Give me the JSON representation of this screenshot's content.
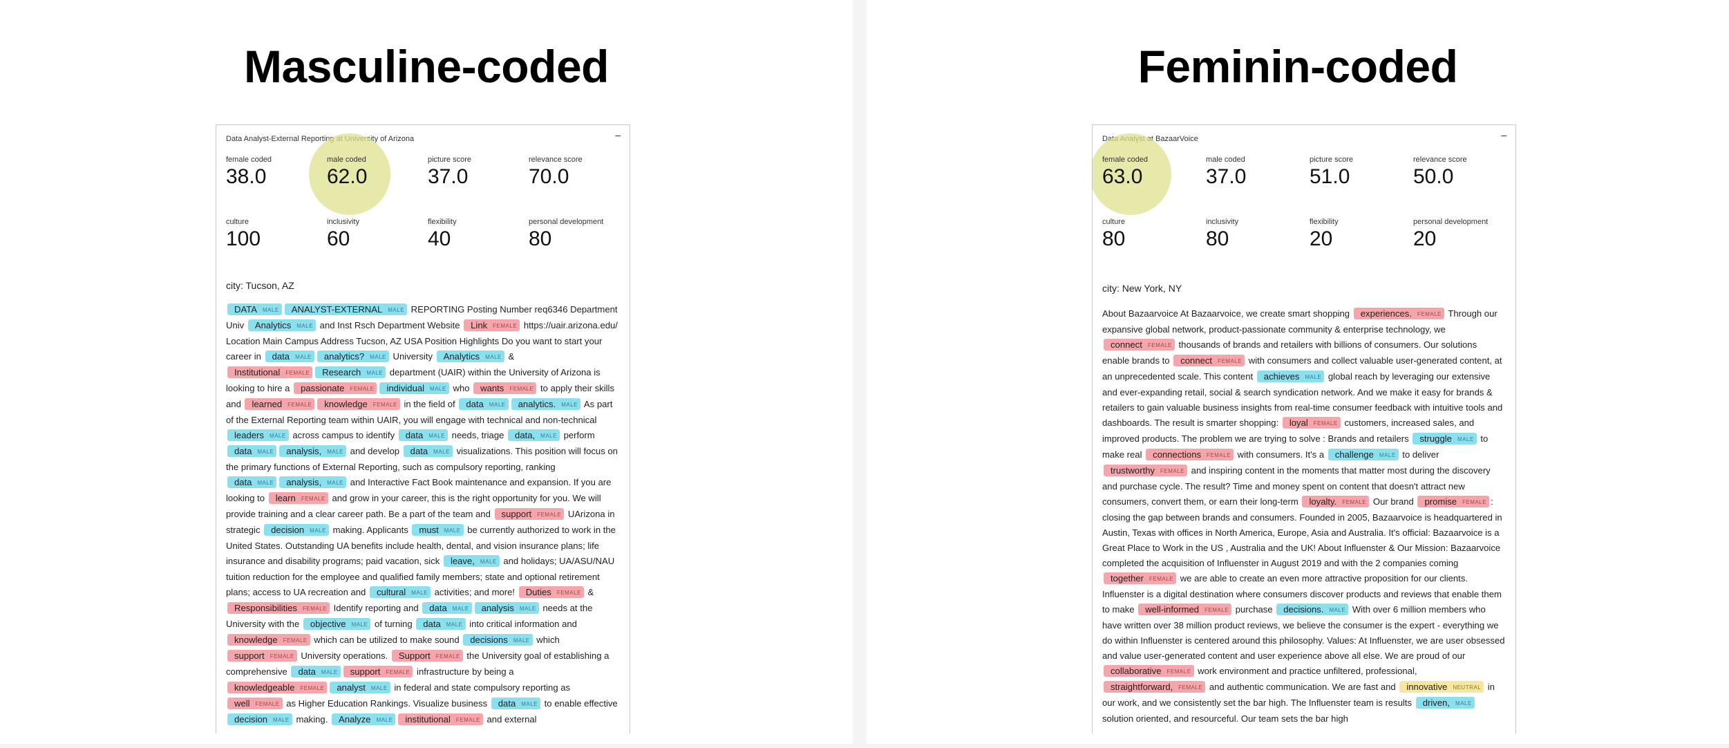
{
  "left": {
    "heading": "Masculine-coded",
    "card": {
      "title": "Data Analyst-External Reporting at University of Arizona",
      "collapse_icon": "−",
      "metrics": [
        {
          "label": "female coded",
          "value": "38.0"
        },
        {
          "label": "male coded",
          "value": "62.0",
          "highlighted": true
        },
        {
          "label": "picture score",
          "value": "37.0"
        },
        {
          "label": "relevance score",
          "value": "70.0"
        },
        {
          "label": "culture",
          "value": "100"
        },
        {
          "label": "inclusivity",
          "value": "60"
        },
        {
          "label": "flexibility",
          "value": "40"
        },
        {
          "label": "personal development",
          "value": "80"
        }
      ],
      "city": "city: Tucson, AZ",
      "body": [
        {
          "t": "DATA",
          "g": "male"
        },
        {
          "t": "ANALYST-EXTERNAL",
          "g": "male"
        },
        {
          "t": " REPORTING Posting Number req6346 Department Univ "
        },
        {
          "t": "Analytics",
          "g": "male"
        },
        {
          "t": " and Inst Rsch Department Website "
        },
        {
          "t": "Link",
          "g": "female"
        },
        {
          "t": " https://uair.arizona.edu/ Location Main Campus Address Tucson, AZ USA Position Highlights Do you want to start your career in "
        },
        {
          "t": "data",
          "g": "male"
        },
        {
          "t": "analytics?",
          "g": "male"
        },
        {
          "t": " University "
        },
        {
          "t": "Analytics",
          "g": "male"
        },
        {
          "t": " & "
        },
        {
          "t": "Institutional",
          "g": "female"
        },
        {
          "t": "Research",
          "g": "male"
        },
        {
          "t": " department (UAIR) within the University of Arizona is looking to hire a "
        },
        {
          "t": "passionate",
          "g": "female"
        },
        {
          "t": "individual",
          "g": "male"
        },
        {
          "t": " who "
        },
        {
          "t": "wants",
          "g": "female"
        },
        {
          "t": " to apply their skills and "
        },
        {
          "t": "learned",
          "g": "female"
        },
        {
          "t": "knowledge",
          "g": "female"
        },
        {
          "t": " in the field of "
        },
        {
          "t": "data",
          "g": "male"
        },
        {
          "t": "analytics.",
          "g": "male"
        },
        {
          "t": " As part of the External Reporting team within UAIR, you will engage with technical and non-technical "
        },
        {
          "t": "leaders",
          "g": "male"
        },
        {
          "t": " across campus to identify "
        },
        {
          "t": "data",
          "g": "male"
        },
        {
          "t": " needs, triage "
        },
        {
          "t": "data,",
          "g": "male"
        },
        {
          "t": " perform "
        },
        {
          "t": "data",
          "g": "male"
        },
        {
          "t": "analysis,",
          "g": "male"
        },
        {
          "t": " and develop "
        },
        {
          "t": "data",
          "g": "male"
        },
        {
          "t": " visualizations. This position will focus on the primary functions of External Reporting, such as compulsory reporting, ranking "
        },
        {
          "t": "data",
          "g": "male"
        },
        {
          "t": "analysis,",
          "g": "male"
        },
        {
          "t": " and Interactive Fact Book maintenance and expansion. If you are looking to "
        },
        {
          "t": "learn",
          "g": "female"
        },
        {
          "t": " and grow in your career, this is the right opportunity for you. We will provide training and a clear career path. Be a part of the team and "
        },
        {
          "t": "support",
          "g": "female"
        },
        {
          "t": " UArizona in strategic "
        },
        {
          "t": "decision",
          "g": "male"
        },
        {
          "t": " making. Applicants "
        },
        {
          "t": "must",
          "g": "male"
        },
        {
          "t": " be currently authorized to work in the United States. Outstanding UA benefits include health, dental, and vision insurance plans; life insurance and disability programs; paid vacation, sick "
        },
        {
          "t": "leave,",
          "g": "male"
        },
        {
          "t": " and holidays; UA/ASU/NAU tuition reduction for the employee and qualified family members; state and optional retirement plans; access to UA recreation and "
        },
        {
          "t": "cultural",
          "g": "male"
        },
        {
          "t": " activities; and more! "
        },
        {
          "t": "Duties",
          "g": "female"
        },
        {
          "t": " & "
        },
        {
          "t": "Responsibilities",
          "g": "female"
        },
        {
          "t": " Identify reporting and "
        },
        {
          "t": "data",
          "g": "male"
        },
        {
          "t": "analysis",
          "g": "male"
        },
        {
          "t": " needs at the University with the "
        },
        {
          "t": "objective",
          "g": "male"
        },
        {
          "t": " of turning "
        },
        {
          "t": "data",
          "g": "male"
        },
        {
          "t": " into critical information and "
        },
        {
          "t": "knowledge",
          "g": "female"
        },
        {
          "t": " which can be utilized to make sound "
        },
        {
          "t": "decisions",
          "g": "male"
        },
        {
          "t": " which "
        },
        {
          "t": "support",
          "g": "female"
        },
        {
          "t": " University operations. "
        },
        {
          "t": "Support",
          "g": "female"
        },
        {
          "t": " the University goal of establishing a comprehensive "
        },
        {
          "t": "data",
          "g": "male"
        },
        {
          "t": "support",
          "g": "female"
        },
        {
          "t": " infrastructure by being a "
        },
        {
          "t": "knowledgeable",
          "g": "female"
        },
        {
          "t": "analyst",
          "g": "male"
        },
        {
          "t": " in federal and state compulsory reporting as "
        },
        {
          "t": "well",
          "g": "female"
        },
        {
          "t": " as Higher Education Rankings. Visualize business "
        },
        {
          "t": "data",
          "g": "male"
        },
        {
          "t": " to enable effective "
        },
        {
          "t": "decision",
          "g": "male"
        },
        {
          "t": " making. "
        },
        {
          "t": "Analyze",
          "g": "male"
        },
        {
          "t": "institutional",
          "g": "female"
        },
        {
          "t": " and external"
        }
      ]
    }
  },
  "right": {
    "heading": "Feminin-coded",
    "card": {
      "title": "Data Analyst at BazaarVoice",
      "collapse_icon": "−",
      "metrics": [
        {
          "label": "female coded",
          "value": "63.0",
          "highlighted": true
        },
        {
          "label": "male coded",
          "value": "37.0"
        },
        {
          "label": "picture score",
          "value": "51.0"
        },
        {
          "label": "relevance score",
          "value": "50.0"
        },
        {
          "label": "culture",
          "value": "80"
        },
        {
          "label": "inclusivity",
          "value": "80"
        },
        {
          "label": "flexibility",
          "value": "20"
        },
        {
          "label": "personal development",
          "value": "20"
        }
      ],
      "city": "city: New York, NY",
      "body": [
        {
          "t": "About Bazaarvoice At Bazaarvoice, we create smart shopping "
        },
        {
          "t": "experiences.",
          "g": "female"
        },
        {
          "t": " Through our expansive global network, product-passionate community & enterprise technology, we "
        },
        {
          "t": "connect",
          "g": "female"
        },
        {
          "t": " thousands of brands and retailers with billions of consumers. Our solutions enable brands to "
        },
        {
          "t": "connect",
          "g": "female"
        },
        {
          "t": " with consumers and collect valuable user-generated content, at an unprecedented scale. This content "
        },
        {
          "t": "achieves",
          "g": "male"
        },
        {
          "t": " global reach by leveraging our extensive and ever-expanding retail, social & search syndication network. And we make it easy for brands & retailers to gain valuable business insights from real-time consumer feedback with intuitive tools and dashboards. The result is smarter shopping: "
        },
        {
          "t": "loyal",
          "g": "female"
        },
        {
          "t": " customers, increased sales, and improved products. The problem we are trying to solve : Brands and retailers "
        },
        {
          "t": "struggle",
          "g": "male"
        },
        {
          "t": " to make real "
        },
        {
          "t": "connections",
          "g": "female"
        },
        {
          "t": " with consumers. It's a "
        },
        {
          "t": "challenge",
          "g": "male"
        },
        {
          "t": " to deliver "
        },
        {
          "t": "trustworthy",
          "g": "female"
        },
        {
          "t": " and inspiring content in the moments that matter most during the discovery and purchase cycle. The result? Time and money spent on content that doesn't attract new consumers, convert them, or earn their long-term "
        },
        {
          "t": "loyalty.",
          "g": "female"
        },
        {
          "t": " Our brand "
        },
        {
          "t": "promise",
          "g": "female"
        },
        {
          "t": ": closing the gap between brands and consumers. Founded in 2005, Bazaarvoice is headquartered in Austin, Texas with offices in North America, Europe, Asia and Australia. It's official: Bazaarvoice is a Great Place to Work in the US , Australia and the UK! About Influenster & Our Mission: Bazaarvoice completed the acquisition of Influenster in August 2019 and with the 2 companies coming "
        },
        {
          "t": "together",
          "g": "female"
        },
        {
          "t": " we are able to create an even more attractive proposition for our clients. Influenster is a digital destination where consumers discover products and reviews that enable them to make "
        },
        {
          "t": "well-informed",
          "g": "female"
        },
        {
          "t": " purchase "
        },
        {
          "t": "decisions.",
          "g": "male"
        },
        {
          "t": " With over 6 million members who have written over 38 million product reviews, we believe the consumer is the expert - everything we do within Influenster is centered around this philosophy. Values: At Influenster, we are user obsessed and value user-generated content and user experience above all else. We are proud of our "
        },
        {
          "t": "collaborative",
          "g": "female"
        },
        {
          "t": " work environment and practice unfiltered, professional, "
        },
        {
          "t": "straightforward,",
          "g": "female"
        },
        {
          "t": " and authentic communication. We are fast and "
        },
        {
          "t": "innovative",
          "g": "neutral"
        },
        {
          "t": " in our work, and we consistently set the bar high. The Influenster team is results "
        },
        {
          "t": "driven,",
          "g": "male"
        },
        {
          "t": " solution oriented, and resourceful. Our team sets the bar high"
        }
      ]
    }
  },
  "tag_labels": {
    "male": "MALE",
    "female": "FEMALE",
    "neutral": "NEUTRAL"
  },
  "colors": {
    "male": "#8be0f0",
    "female": "#f6a6ab",
    "neutral": "#f7e6a0",
    "highlight": "#dee28c"
  }
}
